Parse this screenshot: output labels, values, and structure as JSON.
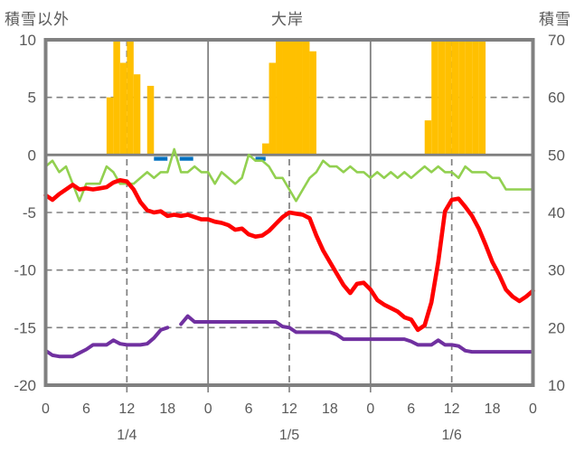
{
  "header": {
    "left_axis_title": "積雪以外",
    "title": "大岸",
    "right_axis_title": "積雪"
  },
  "colors": {
    "text": "#595959",
    "grid": "#808080",
    "border": "#808080",
    "background": "#ffffff",
    "bar_orange": "#FFC000",
    "line_green": "#92D050",
    "line_red": "#FF0000",
    "line_purple": "#7030A0",
    "segment_blue": "#0070C0"
  },
  "chart_data": {
    "type": "combo",
    "title": "大岸",
    "x_axis": {
      "unit": "hour",
      "range": [
        0,
        72
      ],
      "tick_interval": 6,
      "tick_labels": [
        "0",
        "6",
        "12",
        "18",
        "0",
        "6",
        "12",
        "18",
        "0",
        "6",
        "12",
        "18",
        "0"
      ],
      "date_labels": [
        {
          "text": "1/4",
          "hour": 12
        },
        {
          "text": "1/5",
          "hour": 36
        },
        {
          "text": "1/6",
          "hour": 60
        }
      ],
      "axis_tick_hours": [
        12,
        24,
        36,
        48,
        60
      ]
    },
    "left_axis": {
      "label": "積雪以外",
      "range": [
        -20,
        10
      ],
      "ticks": [
        10,
        5,
        0,
        -5,
        -10,
        -15,
        -20
      ]
    },
    "right_axis": {
      "label": "積雪",
      "range": [
        10,
        70
      ],
      "ticks": [
        70,
        60,
        50,
        40,
        30,
        20,
        10
      ]
    },
    "grid": {
      "horizontal_dashed_left_values": [
        5,
        -5,
        -10,
        -15
      ],
      "horizontal_solid_left_values": [
        0
      ],
      "vertical_dashed_hours": [
        12,
        36,
        60
      ],
      "vertical_solid_hours": [
        24,
        48
      ]
    },
    "series": [
      {
        "name": "snowfall-bars",
        "type": "bar",
        "axis": "left",
        "color": "#FFC000",
        "hourly_values": [
          0,
          0,
          0,
          0,
          0,
          0,
          0,
          0,
          0,
          5,
          10,
          8,
          10,
          7,
          0,
          6,
          0,
          0,
          0,
          0,
          0,
          0,
          0,
          0,
          0,
          0,
          0,
          0,
          0,
          0,
          0,
          0,
          1,
          8,
          10,
          10,
          10,
          10,
          10,
          9,
          0,
          0,
          0,
          0,
          0,
          0,
          0,
          0,
          0,
          0,
          0,
          0,
          0,
          0,
          0,
          0,
          3,
          10,
          10,
          10,
          10,
          10,
          10,
          10,
          10,
          0,
          0,
          0,
          0,
          0,
          0,
          0
        ]
      },
      {
        "name": "blue-dash-segments",
        "type": "hsegment",
        "axis": "left",
        "color": "#0070C0",
        "value": -0.5,
        "segments": [
          [
            16,
            18
          ],
          [
            19.8,
            21.8
          ],
          [
            31,
            32.5
          ]
        ]
      },
      {
        "name": "snow-depth-line-green",
        "type": "line",
        "axis": "right",
        "color": "#92D050",
        "stroke_width": 2.6,
        "values": [
          48,
          49,
          47,
          48,
          45,
          42,
          45,
          45,
          45,
          48,
          47,
          45,
          45,
          45,
          46,
          47,
          46,
          47,
          47,
          51,
          47,
          47,
          48,
          47,
          47,
          45,
          47,
          46,
          45,
          46,
          50,
          49,
          49,
          48,
          46,
          46,
          44,
          42,
          44,
          46,
          47,
          49,
          48,
          48,
          47,
          48,
          47,
          47,
          46,
          47,
          46,
          47,
          46,
          47,
          46,
          47,
          48,
          47,
          48,
          47,
          47,
          46,
          48,
          47,
          47,
          47,
          46,
          46,
          44,
          44,
          44,
          44,
          44
        ]
      },
      {
        "name": "temperature-line-red",
        "type": "line",
        "axis": "left",
        "color": "#FF0000",
        "stroke_width": 4.6,
        "values": [
          -3.5,
          -3.9,
          -3.4,
          -3.0,
          -2.6,
          -3.0,
          -2.9,
          -3.0,
          -2.9,
          -2.8,
          -2.4,
          -2.2,
          -2.3,
          -3.0,
          -4.1,
          -4.8,
          -5.0,
          -4.9,
          -5.3,
          -5.2,
          -5.3,
          -5.2,
          -5.4,
          -5.6,
          -5.6,
          -5.8,
          -5.9,
          -6.1,
          -6.5,
          -6.4,
          -6.9,
          -7.1,
          -7.0,
          -6.6,
          -6.0,
          -5.4,
          -5.0,
          -5.1,
          -5.2,
          -5.5,
          -7.0,
          -8.3,
          -9.3,
          -10.3,
          -11.3,
          -12.0,
          -11.2,
          -11.1,
          -11.7,
          -12.6,
          -13.0,
          -13.3,
          -13.6,
          -14.1,
          -14.3,
          -15.2,
          -14.8,
          -12.8,
          -9.3,
          -4.9,
          -3.9,
          -3.8,
          -4.5,
          -5.3,
          -6.4,
          -7.8,
          -9.3,
          -10.4,
          -11.7,
          -12.3,
          -12.7,
          -12.3,
          -11.8
        ]
      },
      {
        "name": "temperature-line-purple",
        "type": "line",
        "axis": "left",
        "color": "#7030A0",
        "stroke_width": 4.0,
        "values": [
          -17.0,
          -17.4,
          -17.5,
          -17.5,
          -17.5,
          -17.2,
          -16.9,
          -16.5,
          -16.5,
          -16.5,
          -16.1,
          -16.4,
          -16.5,
          -16.5,
          -16.5,
          -16.4,
          -15.9,
          -15.2,
          -15.0,
          null,
          -14.7,
          -14.0,
          -14.5,
          -14.5,
          -14.5,
          -14.5,
          -14.5,
          -14.5,
          -14.5,
          -14.5,
          -14.5,
          -14.5,
          -14.5,
          -14.5,
          -14.5,
          -14.9,
          -15.0,
          -15.4,
          -15.4,
          -15.4,
          -15.4,
          -15.4,
          -15.4,
          -15.6,
          -16.0,
          -16.0,
          -16.0,
          -16.0,
          -16.0,
          -16.0,
          -16.0,
          -16.0,
          -16.0,
          -16.0,
          -16.2,
          -16.5,
          -16.5,
          -16.5,
          -16.1,
          -16.5,
          -16.5,
          -16.6,
          -17.0,
          -17.1,
          -17.1,
          -17.1,
          -17.1,
          -17.1,
          -17.1,
          -17.1,
          -17.1,
          -17.1,
          -17.1
        ]
      }
    ]
  }
}
